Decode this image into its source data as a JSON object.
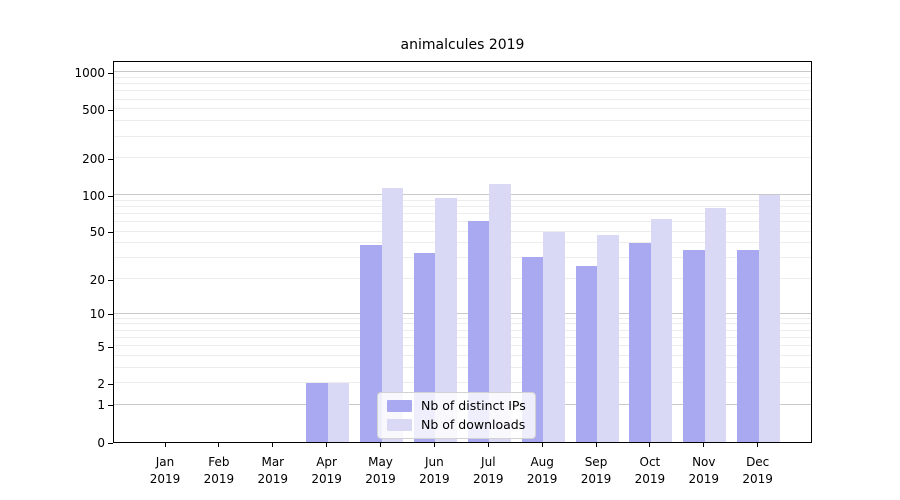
{
  "title": "animalcules 2019",
  "colors": {
    "background": "#ffffff",
    "axis": "#000000",
    "grid_major": "#c9c9c9",
    "grid_minor": "#ededed",
    "text": "#000000"
  },
  "chart_data": {
    "type": "bar",
    "title": "animalcules 2019",
    "categories": [
      "Jan",
      "Feb",
      "Mar",
      "Apr",
      "May",
      "Jun",
      "Jul",
      "Aug",
      "Sep",
      "Oct",
      "Nov",
      "Dec"
    ],
    "x_tick_year_line": "2019",
    "series": [
      {
        "name": "Nb of distinct IPs",
        "color": "#a9a9f1",
        "values": [
          0,
          0,
          0,
          2,
          39,
          33,
          61,
          31,
          26,
          40,
          35,
          35
        ]
      },
      {
        "name": "Nb of downloads",
        "color": "#d9d9f6",
        "values": [
          0,
          0,
          0,
          2,
          115,
          94,
          124,
          50,
          47,
          64,
          78,
          100
        ]
      }
    ],
    "yscale": "log1p",
    "y_tick_values": [
      0,
      1,
      2,
      5,
      10,
      20,
      50,
      100,
      200,
      500,
      1000
    ],
    "y_tick_labels": [
      "0",
      "1",
      "2",
      "5",
      "10",
      "20",
      "50",
      "100",
      "200",
      "500",
      "1000"
    ],
    "ylim": [
      0,
      1258
    ],
    "grid": "horizontal major+minor",
    "legend_position": "lower center"
  }
}
